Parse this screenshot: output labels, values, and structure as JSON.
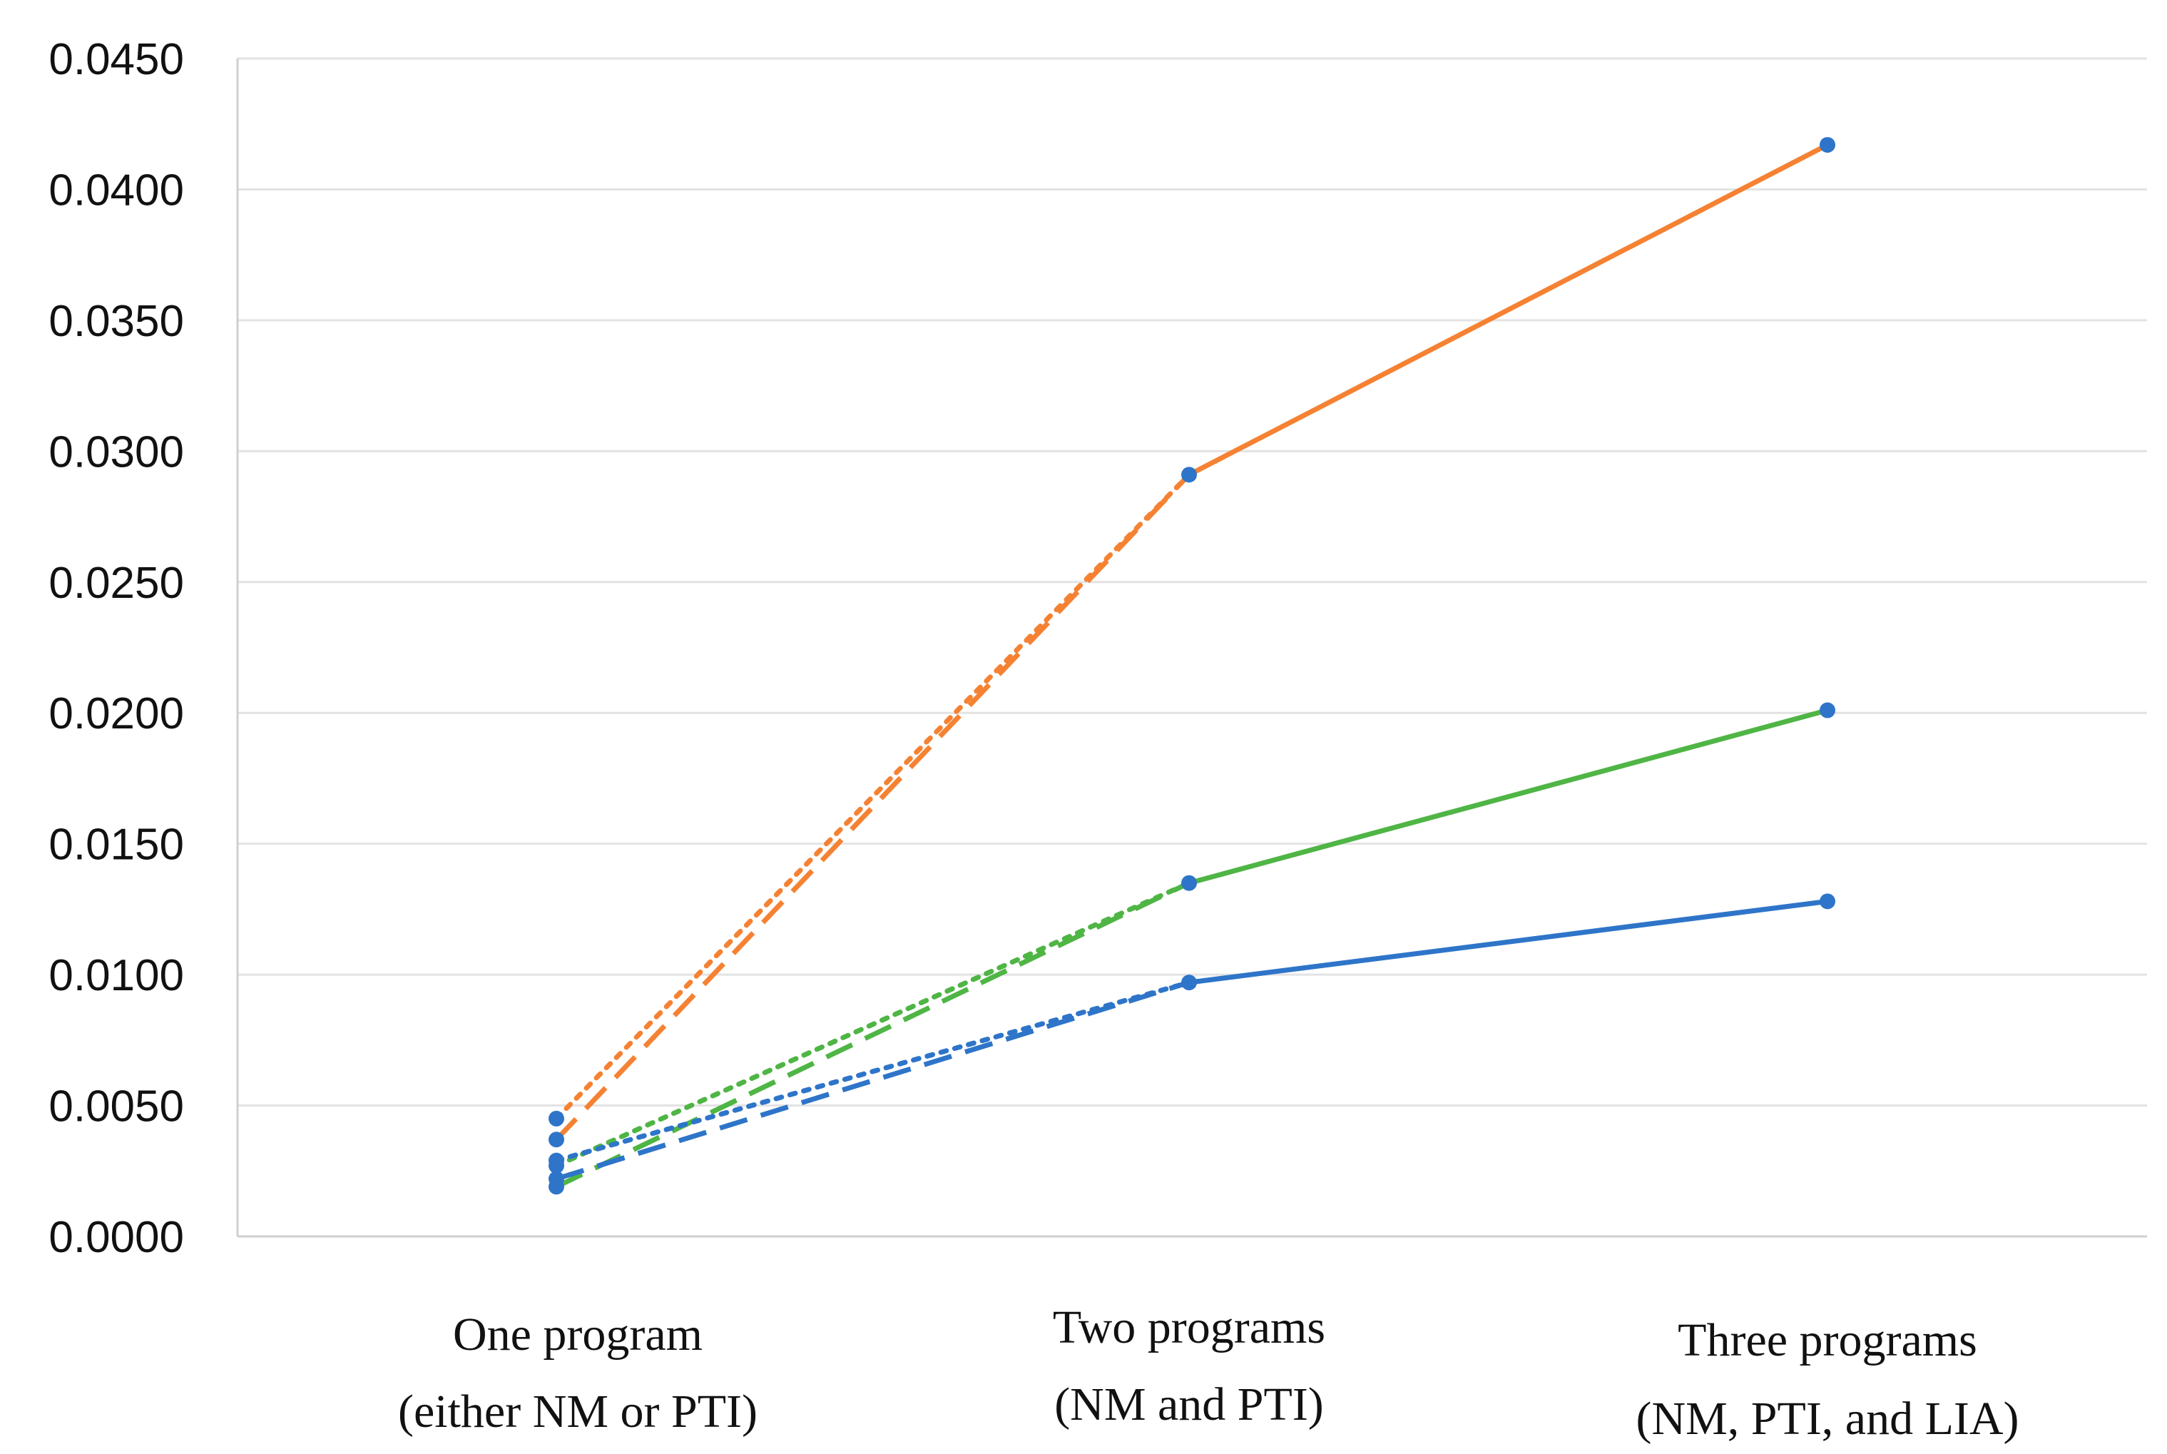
{
  "chart_data": {
    "type": "line",
    "title": "",
    "xlabel": "",
    "ylabel": "",
    "ylim": [
      0,
      0.045
    ],
    "y_ticks": [
      {
        "value": 0.0,
        "label": "0.0000"
      },
      {
        "value": 0.005,
        "label": "0.0050"
      },
      {
        "value": 0.01,
        "label": "0.0100"
      },
      {
        "value": 0.015,
        "label": "0.0150"
      },
      {
        "value": 0.02,
        "label": "0.0200"
      },
      {
        "value": 0.025,
        "label": "0.0250"
      },
      {
        "value": 0.03,
        "label": "0.0300"
      },
      {
        "value": 0.035,
        "label": "0.0350"
      },
      {
        "value": 0.04,
        "label": "0.0400"
      },
      {
        "value": 0.045,
        "label": "0.0450"
      }
    ],
    "categories": [
      {
        "line1": "One program",
        "line2": "(either NM or PTI)"
      },
      {
        "line1": "Two programs",
        "line2": "(NM and PTI)"
      },
      {
        "line1": "Three programs",
        "line2": "(NM, PTI, and LIA)"
      }
    ],
    "grid": true,
    "legend": "none",
    "marker_color": "#2e75c9",
    "segments": [
      {
        "name": "orange-dotted",
        "color": "#f58233",
        "dash": "dotted",
        "x": [
          0,
          1
        ],
        "values": [
          0.0045,
          0.0291
        ]
      },
      {
        "name": "orange-dashed",
        "color": "#f58233",
        "dash": "dashed",
        "x": [
          0,
          1
        ],
        "values": [
          0.0037,
          0.0291
        ]
      },
      {
        "name": "orange-solid",
        "color": "#f58233",
        "dash": "solid",
        "x": [
          1,
          2
        ],
        "values": [
          0.0291,
          0.0417
        ]
      },
      {
        "name": "green-dotted",
        "color": "#4fb545",
        "dash": "dotted",
        "x": [
          0,
          1
        ],
        "values": [
          0.0027,
          0.0135
        ]
      },
      {
        "name": "green-dashed",
        "color": "#4fb545",
        "dash": "dashed",
        "x": [
          0,
          1
        ],
        "values": [
          0.0019,
          0.0135
        ]
      },
      {
        "name": "green-solid",
        "color": "#4fb545",
        "dash": "solid",
        "x": [
          1,
          2
        ],
        "values": [
          0.0135,
          0.0201
        ]
      },
      {
        "name": "blue-dotted",
        "color": "#2e75c9",
        "dash": "dotted",
        "x": [
          0,
          1
        ],
        "values": [
          0.0029,
          0.0097
        ]
      },
      {
        "name": "blue-dashed",
        "color": "#2e75c9",
        "dash": "dashed",
        "x": [
          0,
          1
        ],
        "values": [
          0.0022,
          0.0097
        ]
      },
      {
        "name": "blue-solid",
        "color": "#2e75c9",
        "dash": "solid",
        "x": [
          1,
          2
        ],
        "values": [
          0.0097,
          0.0128
        ]
      }
    ],
    "points": [
      {
        "x": 0,
        "y": 0.0045
      },
      {
        "x": 0,
        "y": 0.0037
      },
      {
        "x": 0,
        "y": 0.0029
      },
      {
        "x": 0,
        "y": 0.0027
      },
      {
        "x": 0,
        "y": 0.0022
      },
      {
        "x": 0,
        "y": 0.0019
      },
      {
        "x": 1,
        "y": 0.0291
      },
      {
        "x": 1,
        "y": 0.0135
      },
      {
        "x": 1,
        "y": 0.0097
      },
      {
        "x": 2,
        "y": 0.0417
      },
      {
        "x": 2,
        "y": 0.0201
      },
      {
        "x": 2,
        "y": 0.0128
      }
    ]
  }
}
